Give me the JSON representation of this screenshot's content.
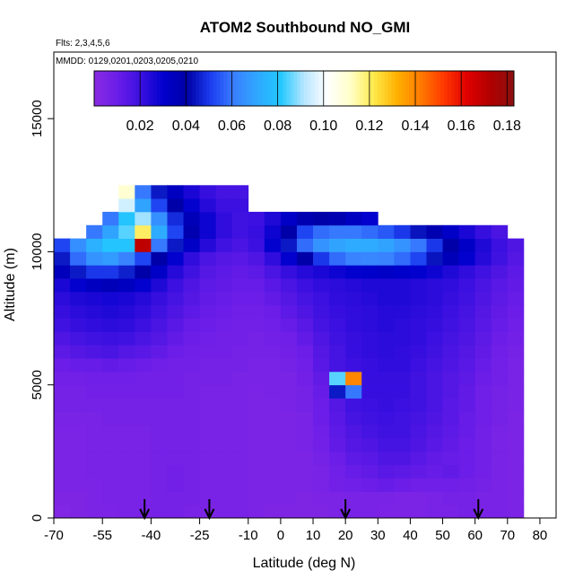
{
  "chart_data": {
    "type": "heatmap",
    "title": "ATOM2 Southbound NO_GMI",
    "note_flights": "Flts: 2,3,4,5,6",
    "note_dates": "MMDD: 0129,0201,0203,0205,0210",
    "xlabel": "Latitude (deg N)",
    "ylabel": "Altitude (m)",
    "xlim": [
      -70,
      85
    ],
    "ylim": [
      0,
      17500
    ],
    "x_tick_values": [
      -70,
      -55,
      -40,
      -25,
      -10,
      0,
      10,
      20,
      30,
      40,
      50,
      60,
      70,
      80
    ],
    "x_tick_labels": [
      "-70",
      "-55",
      "-40",
      "-25",
      "-10",
      "0",
      "10",
      "20",
      "30",
      "40",
      "50",
      "60",
      "70",
      "80"
    ],
    "y_tick_values": [
      0,
      5000,
      10000,
      15000
    ],
    "y_tick_labels": [
      "0",
      "5000",
      "10000",
      "15000"
    ],
    "colorbar": {
      "min": 0.0,
      "max": 0.183,
      "tick_values": [
        0.02,
        0.04,
        0.06,
        0.08,
        0.1,
        0.12,
        0.14,
        0.16,
        0.18
      ],
      "tick_labels": [
        "0.02",
        "0.04",
        "0.06",
        "0.08",
        "0.10",
        "0.12",
        "0.14",
        "0.16",
        "0.18"
      ],
      "colors": [
        "#8a2be2",
        "#6b1de8",
        "#3a10e0",
        "#0000cd",
        "#0000a6",
        "#1c3df0",
        "#3a7fff",
        "#2fa8ff",
        "#22c8ff",
        "#b7e6ff",
        "#ffffff",
        "#ffffc8",
        "#ffe94a",
        "#ffb000",
        "#ff7a00",
        "#ff3800",
        "#e00000",
        "#b00000",
        "#8b1010"
      ]
    },
    "latitude_bins": [
      -67.5,
      -62.5,
      -57.5,
      -52.5,
      -47.5,
      -42.5,
      -37.5,
      -32.5,
      -27.5,
      -22.5,
      -17.5,
      -12.5,
      -7.5,
      -2.5,
      2.5,
      7.5,
      12.5,
      17.5,
      22.5,
      27.5,
      32.5,
      37.5,
      42.5,
      47.5,
      52.5,
      57.5,
      62.5,
      67.5,
      72.5
    ],
    "altitude_bins": [
      250,
      750,
      1250,
      1750,
      2250,
      2750,
      3250,
      3750,
      4250,
      4750,
      5250,
      5750,
      6250,
      6750,
      7250,
      7750,
      8250,
      8750,
      9250,
      9750,
      10250,
      10750,
      11250,
      11750,
      12250
    ],
    "values": [
      [
        0.003,
        0.004,
        0.005,
        0.005,
        0.006,
        0.006,
        0.007,
        0.007,
        0.006,
        0.005,
        0.006,
        0.006,
        0.005,
        0.004,
        0.004,
        0.004,
        0.004,
        0.005,
        0.006,
        0.006,
        0.005,
        0.005,
        0.005,
        0.006,
        0.006,
        0.007,
        0.006,
        0.006,
        0.005
      ],
      [
        0.004,
        0.004,
        0.005,
        0.006,
        0.006,
        0.006,
        0.007,
        0.007,
        0.007,
        0.006,
        0.006,
        0.006,
        0.005,
        0.005,
        0.005,
        0.004,
        0.005,
        0.005,
        0.006,
        0.006,
        0.006,
        0.005,
        0.005,
        0.006,
        0.007,
        0.007,
        0.006,
        0.006,
        0.005
      ],
      [
        0.005,
        0.005,
        0.005,
        0.006,
        0.006,
        0.006,
        0.007,
        0.008,
        0.007,
        0.006,
        0.006,
        0.006,
        0.005,
        0.005,
        0.005,
        0.005,
        0.006,
        0.008,
        0.009,
        0.01,
        0.011,
        0.01,
        0.009,
        0.009,
        0.009,
        0.008,
        0.007,
        0.006,
        0.005
      ],
      [
        0.005,
        0.005,
        0.006,
        0.006,
        0.006,
        0.006,
        0.007,
        0.008,
        0.007,
        0.006,
        0.006,
        0.006,
        0.005,
        0.005,
        0.005,
        0.005,
        0.006,
        0.009,
        0.011,
        0.012,
        0.014,
        0.013,
        0.012,
        0.011,
        0.012,
        0.01,
        0.008,
        0.006,
        0.005
      ],
      [
        0.005,
        0.005,
        0.006,
        0.006,
        0.006,
        0.006,
        0.007,
        0.007,
        0.007,
        0.006,
        0.006,
        0.006,
        0.005,
        0.005,
        0.005,
        0.005,
        0.007,
        0.01,
        0.013,
        0.014,
        0.016,
        0.016,
        0.014,
        0.012,
        0.011,
        0.01,
        0.008,
        0.006,
        0.005
      ],
      [
        0.005,
        0.005,
        0.006,
        0.006,
        0.006,
        0.006,
        0.007,
        0.007,
        0.007,
        0.006,
        0.006,
        0.006,
        0.005,
        0.005,
        0.005,
        0.006,
        0.008,
        0.012,
        0.015,
        0.016,
        0.018,
        0.018,
        0.016,
        0.014,
        0.012,
        0.01,
        0.008,
        0.006,
        0.005
      ],
      [
        0.005,
        0.005,
        0.006,
        0.006,
        0.006,
        0.006,
        0.007,
        0.007,
        0.007,
        0.006,
        0.006,
        0.006,
        0.005,
        0.005,
        0.005,
        0.006,
        0.009,
        0.013,
        0.016,
        0.018,
        0.019,
        0.019,
        0.017,
        0.015,
        0.013,
        0.011,
        0.008,
        0.006,
        0.005
      ],
      [
        0.006,
        0.006,
        0.006,
        0.007,
        0.007,
        0.007,
        0.007,
        0.007,
        0.007,
        0.006,
        0.006,
        0.006,
        0.005,
        0.005,
        0.005,
        0.006,
        0.01,
        0.014,
        0.018,
        0.019,
        0.02,
        0.019,
        0.018,
        0.016,
        0.014,
        0.011,
        0.009,
        0.007,
        0.005
      ],
      [
        0.007,
        0.007,
        0.007,
        0.007,
        0.007,
        0.007,
        0.007,
        0.007,
        0.007,
        0.006,
        0.006,
        0.006,
        0.005,
        0.005,
        0.006,
        0.007,
        0.01,
        0.015,
        0.019,
        0.02,
        0.021,
        0.02,
        0.019,
        0.017,
        0.014,
        0.012,
        0.009,
        0.007,
        0.006
      ],
      [
        0.007,
        0.007,
        0.008,
        0.008,
        0.008,
        0.008,
        0.008,
        0.008,
        0.007,
        0.006,
        0.006,
        0.006,
        0.005,
        0.006,
        0.006,
        0.007,
        0.011,
        0.045,
        0.06,
        0.021,
        0.021,
        0.021,
        0.019,
        0.017,
        0.015,
        0.012,
        0.009,
        0.007,
        0.006
      ],
      [
        0.008,
        0.008,
        0.009,
        0.009,
        0.009,
        0.008,
        0.008,
        0.008,
        0.007,
        0.007,
        0.007,
        0.006,
        0.006,
        0.006,
        0.006,
        0.008,
        0.012,
        0.085,
        0.14,
        0.021,
        0.021,
        0.021,
        0.019,
        0.017,
        0.015,
        0.013,
        0.01,
        0.008,
        0.006
      ],
      [
        0.01,
        0.011,
        0.011,
        0.012,
        0.011,
        0.01,
        0.009,
        0.008,
        0.008,
        0.007,
        0.007,
        0.007,
        0.006,
        0.006,
        0.007,
        0.009,
        0.014,
        0.018,
        0.02,
        0.021,
        0.022,
        0.022,
        0.02,
        0.018,
        0.016,
        0.014,
        0.011,
        0.008,
        0.006
      ],
      [
        0.013,
        0.015,
        0.016,
        0.017,
        0.015,
        0.014,
        0.012,
        0.01,
        0.009,
        0.008,
        0.008,
        0.007,
        0.007,
        0.007,
        0.008,
        0.01,
        0.015,
        0.018,
        0.021,
        0.022,
        0.023,
        0.022,
        0.021,
        0.019,
        0.017,
        0.015,
        0.012,
        0.009,
        0.007
      ],
      [
        0.016,
        0.018,
        0.019,
        0.02,
        0.019,
        0.017,
        0.015,
        0.012,
        0.01,
        0.009,
        0.008,
        0.008,
        0.007,
        0.008,
        0.009,
        0.012,
        0.016,
        0.019,
        0.021,
        0.022,
        0.023,
        0.023,
        0.022,
        0.02,
        0.018,
        0.016,
        0.013,
        0.01,
        0.008
      ],
      [
        0.019,
        0.021,
        0.022,
        0.023,
        0.022,
        0.02,
        0.017,
        0.014,
        0.011,
        0.01,
        0.009,
        0.008,
        0.008,
        0.009,
        0.011,
        0.014,
        0.018,
        0.02,
        0.022,
        0.023,
        0.024,
        0.023,
        0.022,
        0.021,
        0.019,
        0.017,
        0.014,
        0.011,
        0.009
      ],
      [
        0.021,
        0.023,
        0.024,
        0.025,
        0.024,
        0.022,
        0.019,
        0.016,
        0.013,
        0.011,
        0.01,
        0.009,
        0.009,
        0.01,
        0.013,
        0.016,
        0.019,
        0.021,
        0.022,
        0.023,
        0.024,
        0.024,
        0.023,
        0.022,
        0.02,
        0.018,
        0.015,
        0.012,
        0.01
      ],
      [
        0.023,
        0.025,
        0.026,
        0.027,
        0.026,
        0.024,
        0.021,
        0.018,
        0.015,
        0.012,
        0.011,
        0.01,
        0.01,
        0.012,
        0.015,
        0.018,
        0.02,
        0.022,
        0.023,
        0.024,
        0.025,
        0.025,
        0.024,
        0.023,
        0.021,
        0.019,
        0.016,
        0.013,
        0.011
      ],
      [
        0.026,
        0.03,
        0.034,
        0.036,
        0.034,
        0.03,
        0.025,
        0.02,
        0.016,
        0.013,
        0.012,
        0.011,
        0.011,
        0.014,
        0.017,
        0.02,
        0.022,
        0.023,
        0.024,
        0.025,
        0.025,
        0.025,
        0.024,
        0.023,
        0.022,
        0.02,
        0.017,
        0.014,
        0.012
      ],
      [
        0.035,
        0.045,
        0.05,
        0.05,
        0.046,
        0.04,
        0.032,
        0.024,
        0.019,
        0.015,
        0.013,
        0.012,
        0.013,
        0.017,
        0.021,
        0.024,
        0.026,
        0.028,
        0.03,
        0.031,
        0.032,
        0.031,
        0.03,
        0.028,
        0.025,
        0.022,
        0.019,
        0.016,
        0.013
      ],
      [
        0.045,
        0.058,
        0.066,
        0.068,
        0.062,
        0.052,
        0.04,
        0.03,
        0.022,
        0.017,
        0.015,
        0.014,
        0.016,
        0.022,
        0.03,
        0.04,
        0.05,
        0.058,
        0.062,
        0.063,
        0.062,
        0.058,
        0.052,
        0.044,
        0.036,
        0.03,
        0.024,
        0.019,
        0.015
      ],
      [
        0.052,
        0.065,
        0.074,
        0.08,
        0.08,
        0.17,
        0.06,
        0.045,
        0.032,
        0.024,
        0.019,
        0.017,
        0.02,
        0.03,
        0.045,
        0.058,
        0.066,
        0.07,
        0.072,
        0.072,
        0.07,
        0.066,
        0.06,
        0.05,
        0.04,
        0.032,
        0.025,
        0.02,
        0.016
      ],
      [
        null,
        null,
        0.06,
        0.07,
        0.085,
        0.12,
        0.072,
        0.052,
        0.038,
        0.028,
        0.022,
        0.019,
        0.021,
        0.028,
        0.04,
        0.052,
        0.058,
        0.06,
        0.06,
        0.058,
        0.055,
        0.05,
        0.044,
        0.038,
        0.032,
        0.026,
        0.021,
        0.017,
        null
      ],
      [
        null,
        null,
        null,
        0.06,
        0.08,
        0.09,
        0.065,
        0.048,
        0.036,
        0.028,
        0.022,
        0.019,
        0.02,
        0.025,
        0.032,
        0.038,
        0.04,
        0.038,
        0.034,
        0.03,
        null,
        null,
        null,
        null,
        null,
        null,
        null,
        null,
        null
      ],
      [
        null,
        null,
        null,
        null,
        0.095,
        0.07,
        0.052,
        0.04,
        0.03,
        0.024,
        0.02,
        0.02,
        null,
        null,
        null,
        null,
        null,
        null,
        null,
        null,
        null,
        null,
        null,
        null,
        null,
        null,
        null,
        null,
        null
      ],
      [
        null,
        null,
        null,
        null,
        0.11,
        0.06,
        0.045,
        0.034,
        0.026,
        0.021,
        0.018,
        0.018,
        null,
        null,
        null,
        null,
        null,
        null,
        null,
        null,
        null,
        null,
        null,
        null,
        null,
        null,
        null,
        null,
        null
      ]
    ],
    "arrow_latitudes": [
      -42,
      -22,
      20,
      61
    ]
  }
}
